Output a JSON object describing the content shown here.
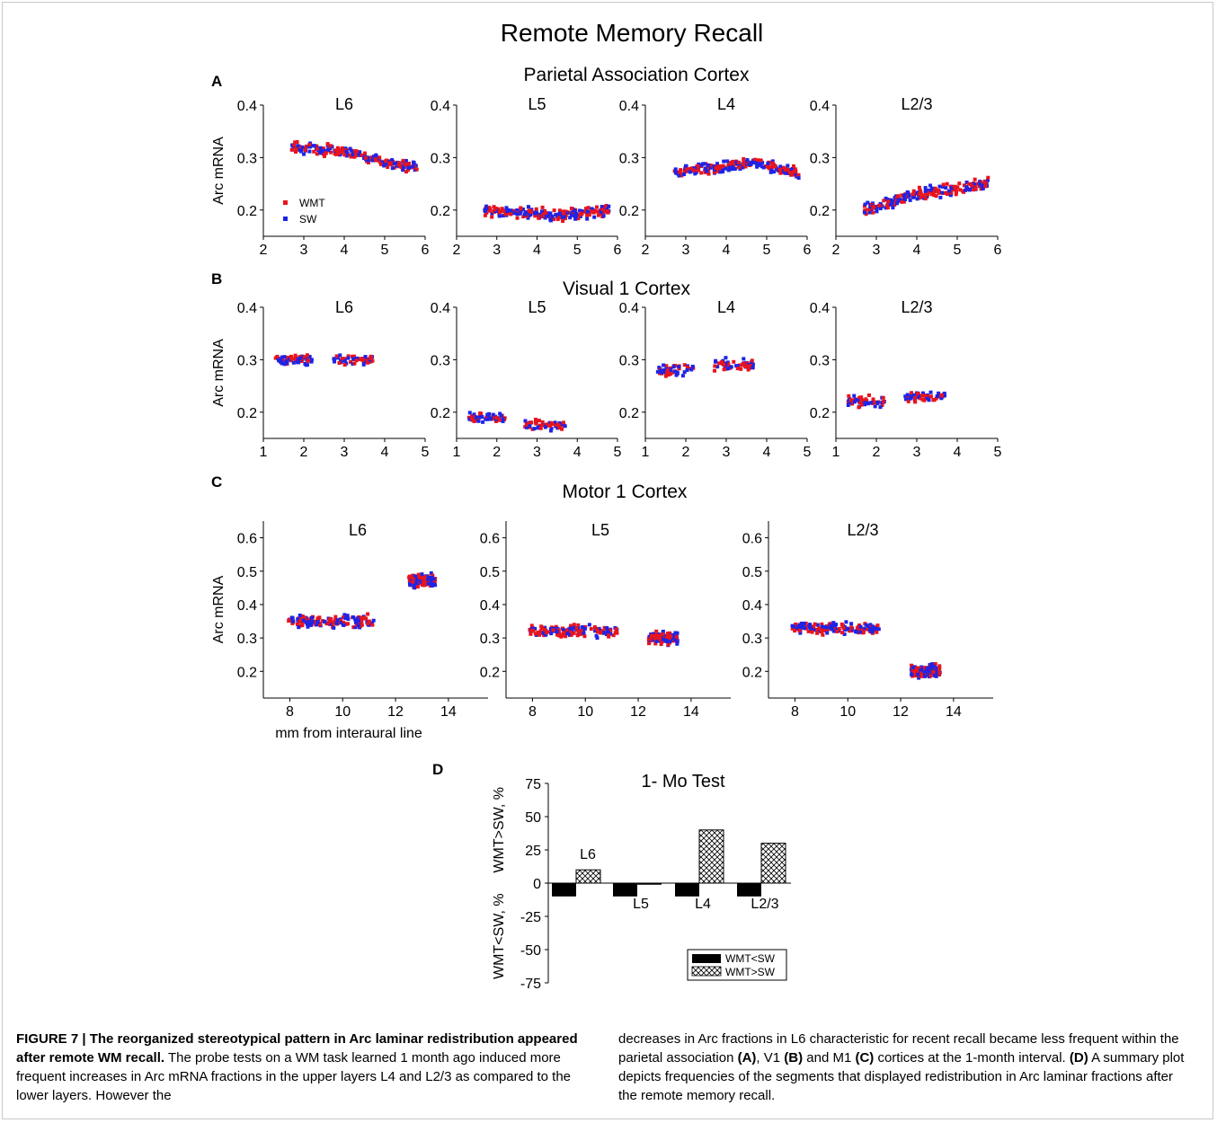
{
  "figure": {
    "main_title": "Remote Memory Recall",
    "panel_letters": {
      "A": "A",
      "B": "B",
      "C": "C",
      "D": "D"
    },
    "section_titles": {
      "A": "Parietal Association Cortex",
      "B": "Visual 1 Cortex",
      "C": "Motor 1 Cortex"
    },
    "ylabel": "Arc mRNA",
    "xlabel_C": "mm from interaural line",
    "legend": {
      "wmt": "WMT",
      "sw": "SW"
    },
    "colors": {
      "wmt": "#e8141e",
      "sw": "#1e24e6"
    }
  },
  "chart_data": [
    {
      "type": "scatter",
      "panel": "A",
      "title": "L6",
      "xlim": [
        2,
        6
      ],
      "ylim": [
        0.15,
        0.4
      ],
      "xticks": [
        "2",
        "3",
        "4",
        "5",
        "6"
      ],
      "yticks": [
        "0.2",
        "0.3",
        "0.4"
      ],
      "series": [
        {
          "name": "WMT",
          "x_range": [
            2.7,
            5.8
          ],
          "y_trend": [
            [
              2.7,
              0.32
            ],
            [
              4.0,
              0.31
            ],
            [
              5.8,
              0.28
            ]
          ]
        },
        {
          "name": "SW",
          "x_range": [
            2.7,
            5.8
          ],
          "y_trend": [
            [
              2.7,
              0.32
            ],
            [
              4.0,
              0.31
            ],
            [
              5.8,
              0.28
            ]
          ]
        }
      ]
    },
    {
      "type": "scatter",
      "panel": "A",
      "title": "L5",
      "xlim": [
        2,
        6
      ],
      "ylim": [
        0.15,
        0.4
      ],
      "xticks": [
        "2",
        "3",
        "4",
        "5",
        "6"
      ],
      "yticks": [
        "0.2",
        "0.3",
        "0.4"
      ],
      "series": [
        {
          "name": "WMT",
          "x_range": [
            2.7,
            5.8
          ],
          "y_trend": [
            [
              2.7,
              0.2
            ],
            [
              4.5,
              0.19
            ],
            [
              5.8,
              0.2
            ]
          ]
        },
        {
          "name": "SW",
          "x_range": [
            2.7,
            5.8
          ],
          "y_trend": [
            [
              2.7,
              0.2
            ],
            [
              4.5,
              0.19
            ],
            [
              5.8,
              0.2
            ]
          ]
        }
      ]
    },
    {
      "type": "scatter",
      "panel": "A",
      "title": "L4",
      "xlim": [
        2,
        6
      ],
      "ylim": [
        0.15,
        0.4
      ],
      "xticks": [
        "2",
        "3",
        "4",
        "5",
        "6"
      ],
      "yticks": [
        "0.2",
        "0.3",
        "0.4"
      ],
      "series": [
        {
          "name": "WMT",
          "x_range": [
            2.7,
            5.8
          ],
          "y_trend": [
            [
              2.7,
              0.27
            ],
            [
              4.7,
              0.29
            ],
            [
              5.8,
              0.27
            ]
          ]
        },
        {
          "name": "SW",
          "x_range": [
            2.7,
            5.8
          ],
          "y_trend": [
            [
              2.7,
              0.27
            ],
            [
              4.7,
              0.29
            ],
            [
              5.8,
              0.27
            ]
          ]
        }
      ]
    },
    {
      "type": "scatter",
      "panel": "A",
      "title": "L2/3",
      "xlim": [
        2,
        6
      ],
      "ylim": [
        0.15,
        0.4
      ],
      "xticks": [
        "2",
        "3",
        "4",
        "5",
        "6"
      ],
      "yticks": [
        "0.2",
        "0.3",
        "0.4"
      ],
      "series": [
        {
          "name": "WMT",
          "x_range": [
            2.7,
            5.8
          ],
          "y_trend": [
            [
              2.7,
              0.2
            ],
            [
              4.0,
              0.23
            ],
            [
              5.8,
              0.25
            ]
          ]
        },
        {
          "name": "SW",
          "x_range": [
            2.7,
            5.8
          ],
          "y_trend": [
            [
              2.7,
              0.2
            ],
            [
              4.0,
              0.23
            ],
            [
              5.8,
              0.25
            ]
          ]
        }
      ]
    },
    {
      "type": "scatter",
      "panel": "B",
      "title": "L6",
      "xlim": [
        1,
        5
      ],
      "ylim": [
        0.15,
        0.4
      ],
      "xticks": [
        "1",
        "2",
        "3",
        "4",
        "5"
      ],
      "yticks": [
        "0.2",
        "0.3",
        "0.4"
      ],
      "clusters": [
        [
          1.3,
          2.2,
          0.3
        ],
        [
          2.7,
          3.7,
          0.3
        ]
      ]
    },
    {
      "type": "scatter",
      "panel": "B",
      "title": "L5",
      "xlim": [
        1,
        5
      ],
      "ylim": [
        0.15,
        0.4
      ],
      "xticks": [
        "1",
        "2",
        "3",
        "4",
        "5"
      ],
      "yticks": [
        "0.2",
        "0.3",
        "0.4"
      ],
      "clusters": [
        [
          1.3,
          2.2,
          0.19
        ],
        [
          2.7,
          3.7,
          0.175
        ]
      ]
    },
    {
      "type": "scatter",
      "panel": "B",
      "title": "L4",
      "xlim": [
        1,
        5
      ],
      "ylim": [
        0.15,
        0.4
      ],
      "xticks": [
        "1",
        "2",
        "3",
        "4",
        "5"
      ],
      "yticks": [
        "0.2",
        "0.3",
        "0.4"
      ],
      "clusters": [
        [
          1.3,
          2.2,
          0.28
        ],
        [
          2.7,
          3.7,
          0.29
        ]
      ]
    },
    {
      "type": "scatter",
      "panel": "B",
      "title": "L2/3",
      "xlim": [
        1,
        5
      ],
      "ylim": [
        0.15,
        0.4
      ],
      "xticks": [
        "1",
        "2",
        "3",
        "4",
        "5"
      ],
      "yticks": [
        "0.2",
        "0.3",
        "0.4"
      ],
      "clusters": [
        [
          1.3,
          2.2,
          0.22
        ],
        [
          2.7,
          3.7,
          0.23
        ]
      ]
    },
    {
      "type": "scatter",
      "panel": "C",
      "title": "L6",
      "xlim": [
        7,
        15.5
      ],
      "ylim": [
        0.12,
        0.65
      ],
      "xticks": [
        "8",
        "10",
        "12",
        "14"
      ],
      "yticks": [
        "0.2",
        "0.3",
        "0.4",
        "0.5",
        "0.6"
      ],
      "clusters": [
        [
          7.9,
          11.2,
          0.35
        ],
        [
          12.5,
          13.5,
          0.47
        ]
      ]
    },
    {
      "type": "scatter",
      "panel": "C",
      "title": "L5",
      "xlim": [
        7,
        15.5
      ],
      "ylim": [
        0.12,
        0.65
      ],
      "xticks": [
        "8",
        "10",
        "12",
        "14"
      ],
      "yticks": [
        "0.2",
        "0.3",
        "0.4",
        "0.5",
        "0.6"
      ],
      "clusters": [
        [
          7.9,
          11.2,
          0.32
        ],
        [
          12.4,
          13.5,
          0.3
        ]
      ]
    },
    {
      "type": "scatter",
      "panel": "C",
      "title": "L2/3",
      "xlim": [
        7,
        15.5
      ],
      "ylim": [
        0.12,
        0.65
      ],
      "xticks": [
        "8",
        "10",
        "12",
        "14"
      ],
      "yticks": [
        "0.2",
        "0.3",
        "0.4",
        "0.5",
        "0.6"
      ],
      "clusters": [
        [
          7.9,
          11.2,
          0.33
        ],
        [
          12.4,
          13.5,
          0.2
        ]
      ]
    },
    {
      "type": "bar",
      "panel": "D",
      "title": "1- Mo Test",
      "categories": [
        "L6",
        "L5",
        "L4",
        "L2/3"
      ],
      "series": [
        {
          "name": "WMT<SW",
          "values": [
            -10,
            -10,
            -10,
            -10
          ]
        },
        {
          "name": "WMT>SW",
          "values": [
            10,
            0,
            40,
            30
          ]
        }
      ],
      "ylim": [
        -75,
        75
      ],
      "yticks": [
        "75",
        "50",
        "25",
        "0",
        "-25",
        "-50",
        "-75"
      ],
      "ylabel_top": "WMT>SW, %",
      "ylabel_bottom": "WMT<SW, %"
    }
  ],
  "caption": {
    "lead": "FIGURE 7 | The reorganized stereotypical pattern in Arc laminar redistribution appeared after remote WM recall.",
    "left_text": "The probe tests on a WM task learned 1 month ago induced more frequent increases in Arc mRNA fractions in the upper layers L4 and L2/3 as compared to the lower layers. However the",
    "right_text_1": "decreases in Arc fractions in L6 characteristic for recent recall became less frequent within the parietal association ",
    "right_A": "(A)",
    "right_text_2": ", V1 ",
    "right_B": "(B)",
    "right_text_3": " and M1 ",
    "right_C": "(C)",
    "right_text_4": " cortices at the 1-month interval. ",
    "right_D": "(D)",
    "right_text_5": " A summary plot depicts frequencies of the segments that displayed redistribution in Arc laminar fractions after the remote memory recall."
  }
}
